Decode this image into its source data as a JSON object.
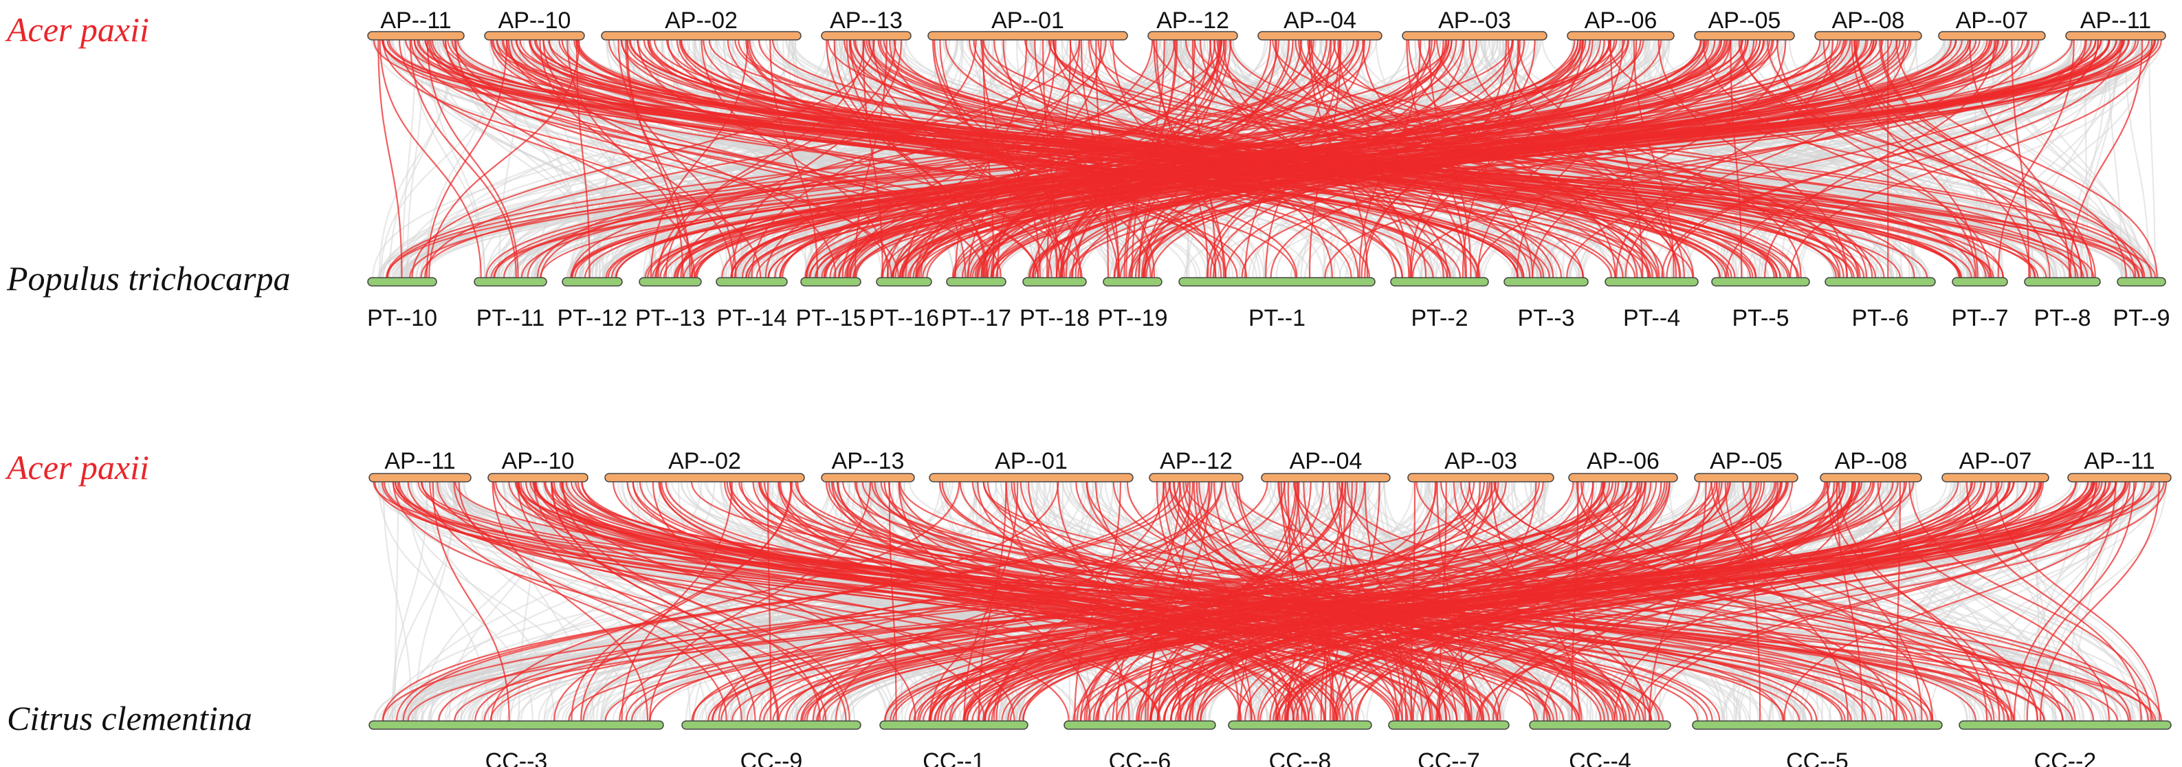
{
  "colors": {
    "query_chrom": "#f4a86a",
    "target_chrom": "#93cc73",
    "chrom_outline": "#444444",
    "background_link": "#d6d6d6",
    "highlight_link": "#ee2a2a",
    "query_species_label": "#e8262a",
    "target_species_label": "#111111"
  },
  "panels": [
    {
      "top_species": "Acer paxii",
      "bottom_species": "Populus trichocarpa",
      "top_chromosomes": [
        "AP--11",
        "AP--10",
        "AP--02",
        "AP--13",
        "AP--01",
        "AP--12",
        "AP--04",
        "AP--03",
        "AP--06",
        "AP--05",
        "AP--08",
        "AP--07",
        "AP--11"
      ],
      "bottom_chromosomes": [
        "PT--10",
        "PT--11",
        "PT--12",
        "PT--13",
        "PT--14",
        "PT--15",
        "PT--16",
        "PT--17",
        "PT--18",
        "PT--19",
        "PT--1",
        "PT--2",
        "PT--3",
        "PT--4",
        "PT--5",
        "PT--6",
        "PT--7",
        "PT--8",
        "PT--9"
      ]
    },
    {
      "top_species": "Acer paxii",
      "bottom_species": "Citrus clementina",
      "top_chromosomes": [
        "AP--11",
        "AP--10",
        "AP--02",
        "AP--13",
        "AP--01",
        "AP--12",
        "AP--04",
        "AP--03",
        "AP--06",
        "AP--05",
        "AP--08",
        "AP--07",
        "AP--11"
      ],
      "bottom_chromosomes": [
        "CC--3",
        "CC--9",
        "CC--1",
        "CC--6",
        "CC--8",
        "CC--7",
        "CC--4",
        "CC--5",
        "CC--2"
      ]
    }
  ]
}
